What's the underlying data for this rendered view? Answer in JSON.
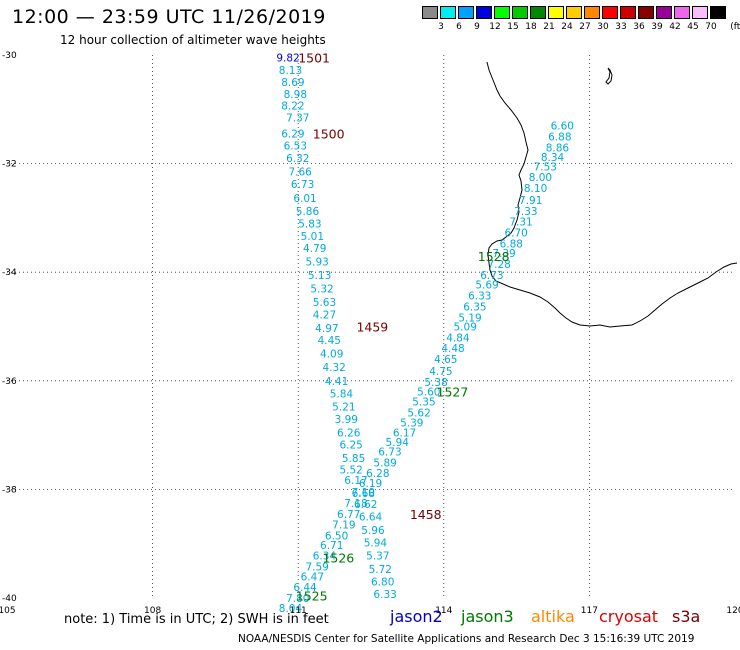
{
  "header": {
    "title": "12:00 — 23:59 UTC 11/26/2019",
    "subtitle": "12 hour collection of altimeter wave heights"
  },
  "legend": {
    "unit": "(ft)",
    "bins": [
      {
        "label": "3",
        "color": "#8a8a8a"
      },
      {
        "label": "6",
        "color": "#00eeee"
      },
      {
        "label": "9",
        "color": "#00a0ff"
      },
      {
        "label": "12",
        "color": "#0000dd"
      },
      {
        "label": "15",
        "color": "#00ff00"
      },
      {
        "label": "18",
        "color": "#00cc00"
      },
      {
        "label": "21",
        "color": "#008800"
      },
      {
        "label": "24",
        "color": "#ffff00"
      },
      {
        "label": "27",
        "color": "#ffcc00"
      },
      {
        "label": "30",
        "color": "#ff8800"
      },
      {
        "label": "33",
        "color": "#ff0000"
      },
      {
        "label": "36",
        "color": "#cc0000"
      },
      {
        "label": "39",
        "color": "#880000"
      },
      {
        "label": "42",
        "color": "#990099"
      },
      {
        "label": "45",
        "color": "#ee66ee"
      },
      {
        "label": "70",
        "color": "#ffbbff"
      },
      {
        "label": "",
        "color": "#000000"
      }
    ]
  },
  "map": {
    "lon_range": [
      105,
      120
    ],
    "lat_range": [
      -40,
      -30
    ],
    "lon_ticks": [
      "105",
      "108",
      "111",
      "114",
      "117",
      "120"
    ],
    "lat_ticks": [
      "-30",
      "-32",
      "-34",
      "-36",
      "-38",
      "-40"
    ],
    "colors": {
      "wave_text": "#00aadd",
      "jason3": "#007700",
      "s3a": "#770000",
      "coast": "#000000"
    }
  },
  "tracks": [
    {
      "satellite": "s3a",
      "times": [
        {
          "label": "1501",
          "lon": 111.0,
          "lat": -30.05
        },
        {
          "label": "1500",
          "lon": 111.3,
          "lat": -31.45
        },
        {
          "label": "1459",
          "lon": 112.2,
          "lat": -35.0
        },
        {
          "label": "1458",
          "lon": 113.3,
          "lat": -38.45
        }
      ],
      "values": [
        {
          "v": "9.82",
          "lon": 110.55,
          "lat": -30.05,
          "c": "#0000dd"
        },
        {
          "v": "8.13",
          "lon": 110.6,
          "lat": -30.28
        },
        {
          "v": "8.69",
          "lon": 110.65,
          "lat": -30.5
        },
        {
          "v": "8.98",
          "lon": 110.7,
          "lat": -30.72
        },
        {
          "v": "8.22",
          "lon": 110.65,
          "lat": -30.93
        },
        {
          "v": "7.37",
          "lon": 110.75,
          "lat": -31.15
        },
        {
          "v": "6.29",
          "lon": 110.65,
          "lat": -31.45
        },
        {
          "v": "6.53",
          "lon": 110.7,
          "lat": -31.67
        },
        {
          "v": "6.32",
          "lon": 110.75,
          "lat": -31.9
        },
        {
          "v": "7.66",
          "lon": 110.8,
          "lat": -32.15
        },
        {
          "v": "6.73",
          "lon": 110.85,
          "lat": -32.38
        },
        {
          "v": "6.01",
          "lon": 110.9,
          "lat": -32.63
        },
        {
          "v": "5.86",
          "lon": 110.95,
          "lat": -32.87
        },
        {
          "v": "5.83",
          "lon": 111.0,
          "lat": -33.1
        },
        {
          "v": "5.01",
          "lon": 111.05,
          "lat": -33.33
        },
        {
          "v": "4.79",
          "lon": 111.1,
          "lat": -33.55
        },
        {
          "v": "5.93",
          "lon": 111.15,
          "lat": -33.8
        },
        {
          "v": "5.13",
          "lon": 111.2,
          "lat": -34.05
        },
        {
          "v": "5.32",
          "lon": 111.25,
          "lat": -34.3
        },
        {
          "v": "5.63",
          "lon": 111.3,
          "lat": -34.55
        },
        {
          "v": "4.27",
          "lon": 111.3,
          "lat": -34.78
        },
        {
          "v": "4.97",
          "lon": 111.35,
          "lat": -35.03
        },
        {
          "v": "4.45",
          "lon": 111.4,
          "lat": -35.25
        },
        {
          "v": "4.09",
          "lon": 111.45,
          "lat": -35.5
        },
        {
          "v": "4.32",
          "lon": 111.5,
          "lat": -35.75
        },
        {
          "v": "4.41",
          "lon": 111.55,
          "lat": -36.0
        },
        {
          "v": "5.84",
          "lon": 111.65,
          "lat": -36.23
        },
        {
          "v": "5.21",
          "lon": 111.7,
          "lat": -36.47
        },
        {
          "v": "3.99",
          "lon": 111.75,
          "lat": -36.7
        },
        {
          "v": "6.26",
          "lon": 111.8,
          "lat": -36.95
        },
        {
          "v": "6.25",
          "lon": 111.85,
          "lat": -37.17
        },
        {
          "v": "5.85",
          "lon": 111.9,
          "lat": -37.42
        },
        {
          "v": "5.52",
          "lon": 111.85,
          "lat": -37.63
        },
        {
          "v": "6.17",
          "lon": 111.95,
          "lat": -37.83
        },
        {
          "v": "7.10",
          "lon": 112.1,
          "lat": -38.05
        },
        {
          "v": "6.62",
          "lon": 112.15,
          "lat": -38.27
        },
        {
          "v": "6.64",
          "lon": 112.25,
          "lat": -38.5
        },
        {
          "v": "5.96",
          "lon": 112.3,
          "lat": -38.75
        },
        {
          "v": "5.94",
          "lon": 112.35,
          "lat": -38.98
        },
        {
          "v": "5.37",
          "lon": 112.4,
          "lat": -39.22
        },
        {
          "v": "5.72",
          "lon": 112.45,
          "lat": -39.47
        },
        {
          "v": "6.80",
          "lon": 112.5,
          "lat": -39.7
        },
        {
          "v": "6.33",
          "lon": 112.55,
          "lat": -39.93
        }
      ]
    },
    {
      "satellite": "jason3",
      "times": [
        {
          "label": "1528",
          "lon": 114.7,
          "lat": -33.7
        },
        {
          "label": "1527",
          "lon": 113.85,
          "lat": -36.2
        },
        {
          "label": "1526",
          "lon": 111.5,
          "lat": -39.25
        },
        {
          "label": "1525",
          "lon": 110.95,
          "lat": -39.95
        }
      ],
      "values": [
        {
          "v": "6.60",
          "lon": 116.2,
          "lat": -31.3
        },
        {
          "v": "6.88",
          "lon": 116.15,
          "lat": -31.5
        },
        {
          "v": "8.86",
          "lon": 116.1,
          "lat": -31.7
        },
        {
          "v": "8.34",
          "lon": 116.0,
          "lat": -31.88
        },
        {
          "v": "7.53",
          "lon": 115.85,
          "lat": -32.05
        },
        {
          "v": "8.00",
          "lon": 115.75,
          "lat": -32.25
        },
        {
          "v": "8.10",
          "lon": 115.65,
          "lat": -32.45
        },
        {
          "v": "7.91",
          "lon": 115.55,
          "lat": -32.67
        },
        {
          "v": "7.33",
          "lon": 115.45,
          "lat": -32.87
        },
        {
          "v": "7.31",
          "lon": 115.35,
          "lat": -33.07
        },
        {
          "v": "6.70",
          "lon": 115.25,
          "lat": -33.27
        },
        {
          "v": "6.88",
          "lon": 115.15,
          "lat": -33.47
        },
        {
          "v": "7.39",
          "lon": 115.0,
          "lat": -33.65
        },
        {
          "v": "7.28",
          "lon": 114.9,
          "lat": -33.85
        },
        {
          "v": "6.73",
          "lon": 114.75,
          "lat": -34.05
        },
        {
          "v": "5.69",
          "lon": 114.65,
          "lat": -34.23
        },
        {
          "v": "6.33",
          "lon": 114.5,
          "lat": -34.43
        },
        {
          "v": "6.35",
          "lon": 114.4,
          "lat": -34.63
        },
        {
          "v": "5.19",
          "lon": 114.3,
          "lat": -34.83
        },
        {
          "v": "5.09",
          "lon": 114.2,
          "lat": -35.0
        },
        {
          "v": "4.84",
          "lon": 114.05,
          "lat": -35.2
        },
        {
          "v": "4.48",
          "lon": 113.95,
          "lat": -35.4
        },
        {
          "v": "4.65",
          "lon": 113.8,
          "lat": -35.6
        },
        {
          "v": "4.75",
          "lon": 113.7,
          "lat": -35.82
        },
        {
          "v": "5.38",
          "lon": 113.6,
          "lat": -36.02
        },
        {
          "v": "5.60",
          "lon": 113.45,
          "lat": -36.2
        },
        {
          "v": "5.35",
          "lon": 113.35,
          "lat": -36.38
        },
        {
          "v": "5.62",
          "lon": 113.25,
          "lat": -36.58
        },
        {
          "v": "5.39",
          "lon": 113.1,
          "lat": -36.77
        },
        {
          "v": "6.17",
          "lon": 112.95,
          "lat": -36.95
        },
        {
          "v": "5.94",
          "lon": 112.8,
          "lat": -37.13
        },
        {
          "v": "6.73",
          "lon": 112.65,
          "lat": -37.3
        },
        {
          "v": "5.89",
          "lon": 112.55,
          "lat": -37.5
        },
        {
          "v": "6.28",
          "lon": 112.4,
          "lat": -37.7
        },
        {
          "v": "6.19",
          "lon": 112.25,
          "lat": -37.88
        },
        {
          "v": "6.68",
          "lon": 112.1,
          "lat": -38.07
        },
        {
          "v": "7.18",
          "lon": 111.95,
          "lat": -38.25
        },
        {
          "v": "6.77",
          "lon": 111.8,
          "lat": -38.45
        },
        {
          "v": "7.19",
          "lon": 111.7,
          "lat": -38.65
        },
        {
          "v": "6.50",
          "lon": 111.55,
          "lat": -38.85
        },
        {
          "v": "6.71",
          "lon": 111.45,
          "lat": -39.02
        },
        {
          "v": "6.34",
          "lon": 111.3,
          "lat": -39.22
        },
        {
          "v": "7.59",
          "lon": 111.15,
          "lat": -39.42
        },
        {
          "v": "6.47",
          "lon": 111.05,
          "lat": -39.6
        },
        {
          "v": "6.44",
          "lon": 110.9,
          "lat": -39.8
        },
        {
          "v": "7.80",
          "lon": 110.75,
          "lat": -40.0
        },
        {
          "v": "8.04",
          "lon": 110.6,
          "lat": -40.18
        }
      ]
    }
  ],
  "footer": {
    "note": "note: 1) Time is in UTC; 2) SWH is in feet",
    "satellites": [
      {
        "name": "jason2",
        "color": "#0000cc"
      },
      {
        "name": "jason3",
        "color": "#007700"
      },
      {
        "name": "altika",
        "color": "#ff8800"
      },
      {
        "name": "cryosat",
        "color": "#dd0000"
      },
      {
        "name": "s3a",
        "color": "#770000"
      }
    ],
    "credit": "NOAA/NESDIS Center for Satellite Applications and Research    Dec  3 15:16:39 UTC 2019"
  }
}
